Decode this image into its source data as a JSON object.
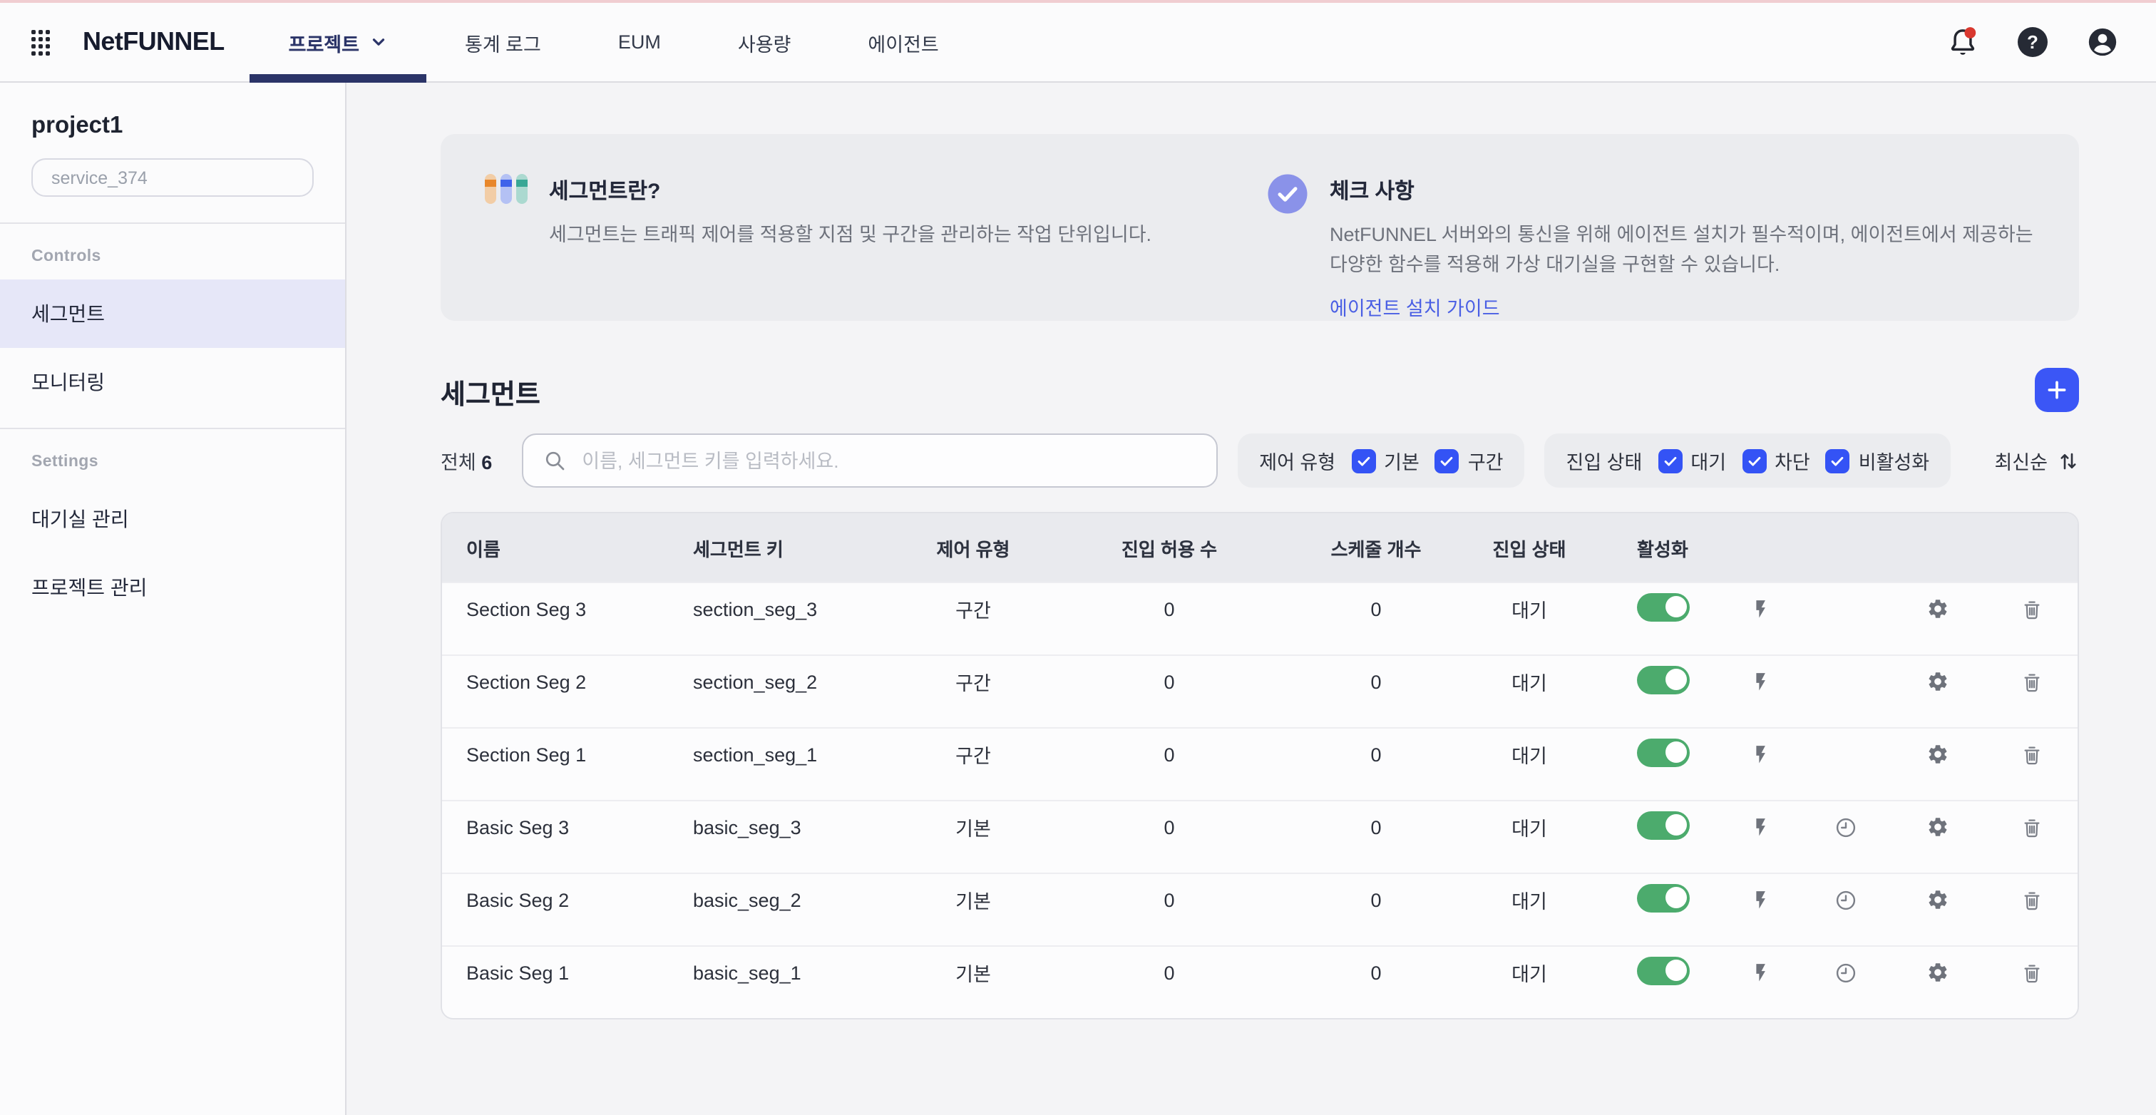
{
  "topbar": {
    "brand": "NetFUNNEL",
    "tabs": [
      {
        "id": "project",
        "label": "프로젝트",
        "active": true,
        "has_chevron": true
      },
      {
        "id": "stats-log",
        "label": "통계 로그",
        "active": false,
        "has_chevron": false
      },
      {
        "id": "eum",
        "label": "EUM",
        "active": false,
        "has_chevron": false
      },
      {
        "id": "usage",
        "label": "사용량",
        "active": false,
        "has_chevron": false
      },
      {
        "id": "agent",
        "label": "에이전트",
        "active": false,
        "has_chevron": false
      }
    ]
  },
  "sidebar": {
    "project_name": "project1",
    "service_selector_value": "service_374",
    "sections": [
      {
        "label": "Controls",
        "items": [
          {
            "id": "segment",
            "label": "세그먼트",
            "active": true
          },
          {
            "id": "monitoring",
            "label": "모니터링",
            "active": false
          }
        ]
      },
      {
        "label": "Settings",
        "items": [
          {
            "id": "waiting-room",
            "label": "대기실 관리",
            "active": false
          },
          {
            "id": "project-management",
            "label": "프로젝트 관리",
            "active": false
          }
        ]
      }
    ]
  },
  "info_banner": {
    "left": {
      "title": "세그먼트란?",
      "body": "세그먼트는 트래픽 제어를 적용할 지점 및 구간을 관리하는 작업 단위입니다."
    },
    "right": {
      "title": "체크 사항",
      "body": "NetFUNNEL 서버와의 통신을 위해 에이전트 설치가 필수적이며, 에이전트에서 제공하는 다양한 함수를 적용해 가상 대기실을 구현할 수 있습니다.",
      "link_label": "에이전트 설치 가이드"
    }
  },
  "segment_section": {
    "title": "세그먼트",
    "total_label": "전체",
    "total_count": "6",
    "search_placeholder": "이름, 세그먼트 키를 입력하세요.",
    "filter_groups": [
      {
        "id": "control-type",
        "label": "제어 유형",
        "options": [
          {
            "label": "기본",
            "checked": true
          },
          {
            "label": "구간",
            "checked": true
          }
        ]
      },
      {
        "id": "entry-state",
        "label": "진입 상태",
        "options": [
          {
            "label": "대기",
            "checked": true
          },
          {
            "label": "차단",
            "checked": true
          },
          {
            "label": "비활성화",
            "checked": true
          }
        ]
      }
    ],
    "sort_label": "최신순"
  },
  "table": {
    "columns": [
      "이름",
      "세그먼트 키",
      "제어 유형",
      "진입 허용 수",
      "스케줄 개수",
      "진입 상태",
      "활성화"
    ],
    "rows": [
      {
        "name": "Section Seg 3",
        "segment_key": "section_seg_3",
        "control_type": "구간",
        "entry_allowed": "0",
        "schedule_count": "0",
        "entry_state": "대기",
        "enabled": true,
        "actions": [
          "lightning",
          "gear",
          "trash"
        ]
      },
      {
        "name": "Section Seg 2",
        "segment_key": "section_seg_2",
        "control_type": "구간",
        "entry_allowed": "0",
        "schedule_count": "0",
        "entry_state": "대기",
        "enabled": true,
        "actions": [
          "lightning",
          "gear",
          "trash"
        ]
      },
      {
        "name": "Section Seg 1",
        "segment_key": "section_seg_1",
        "control_type": "구간",
        "entry_allowed": "0",
        "schedule_count": "0",
        "entry_state": "대기",
        "enabled": true,
        "actions": [
          "lightning",
          "gear",
          "trash"
        ]
      },
      {
        "name": "Basic Seg 3",
        "segment_key": "basic_seg_3",
        "control_type": "기본",
        "entry_allowed": "0",
        "schedule_count": "0",
        "entry_state": "대기",
        "enabled": true,
        "actions": [
          "lightning",
          "clock",
          "gear",
          "trash"
        ]
      },
      {
        "name": "Basic Seg 2",
        "segment_key": "basic_seg_2",
        "control_type": "기본",
        "entry_allowed": "0",
        "schedule_count": "0",
        "entry_state": "대기",
        "enabled": true,
        "actions": [
          "lightning",
          "clock",
          "gear",
          "trash"
        ]
      },
      {
        "name": "Basic Seg 1",
        "segment_key": "basic_seg_1",
        "control_type": "기본",
        "entry_allowed": "0",
        "schedule_count": "0",
        "entry_state": "대기",
        "enabled": true,
        "actions": [
          "lightning",
          "clock",
          "gear",
          "trash"
        ]
      }
    ]
  },
  "colors": {
    "accent_blue": "#3453f5",
    "navy": "#2b3468",
    "link_blue": "#4a5fe4",
    "toggle_green": "#4cab6d",
    "badge_red": "#d9382f",
    "active_item_bg": "#e6e7f8",
    "banner_bg": "#ebecef",
    "check_circle": "#8a92e9"
  }
}
